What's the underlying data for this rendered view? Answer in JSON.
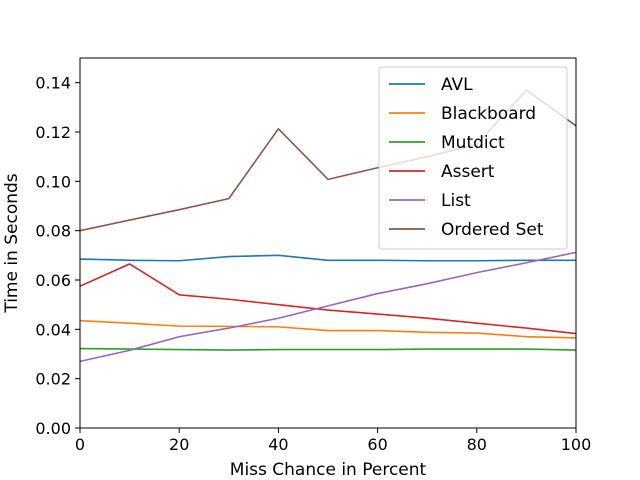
{
  "chart_data": {
    "type": "line",
    "title": "",
    "xlabel": "Miss Chance in Percent",
    "ylabel": "Time in Seconds",
    "xlim": [
      0,
      100
    ],
    "ylim": [
      0,
      0.15
    ],
    "xticks": [
      0,
      20,
      40,
      60,
      80,
      100
    ],
    "xtick_labels": [
      "0",
      "20",
      "40",
      "60",
      "80",
      "100"
    ],
    "yticks": [
      0,
      0.02,
      0.04,
      0.06,
      0.08,
      0.1,
      0.12,
      0.14
    ],
    "ytick_labels": [
      "0.00",
      "0.02",
      "0.04",
      "0.06",
      "0.08",
      "0.10",
      "0.12",
      "0.14"
    ],
    "grid": false,
    "legend_position": "top-right",
    "x": [
      0,
      10,
      20,
      30,
      40,
      50,
      60,
      70,
      80,
      90,
      100
    ],
    "series": [
      {
        "name": "AVL",
        "color": "#1f77b4",
        "values": [
          0.0685,
          0.068,
          0.0678,
          0.0695,
          0.07,
          0.068,
          0.068,
          0.0678,
          0.0678,
          0.068,
          0.068
        ]
      },
      {
        "name": "Blackboard",
        "color": "#ff7f0e",
        "values": [
          0.0435,
          0.0425,
          0.0413,
          0.0412,
          0.041,
          0.0395,
          0.0395,
          0.0388,
          0.0385,
          0.037,
          0.0365
        ]
      },
      {
        "name": "Mutdict",
        "color": "#2ca02c",
        "values": [
          0.0322,
          0.032,
          0.0318,
          0.0316,
          0.0318,
          0.0318,
          0.0318,
          0.032,
          0.032,
          0.032,
          0.0316
        ]
      },
      {
        "name": "Assert",
        "color": "#d62728",
        "values": [
          0.0575,
          0.0665,
          0.054,
          0.0522,
          0.05,
          0.0478,
          0.0462,
          0.0445,
          0.0425,
          0.0405,
          0.0383
        ]
      },
      {
        "name": "List",
        "color": "#9467bd",
        "values": [
          0.027,
          0.0315,
          0.037,
          0.0405,
          0.0445,
          0.0495,
          0.0545,
          0.0585,
          0.063,
          0.067,
          0.0712
        ]
      },
      {
        "name": "Ordered Set",
        "color": "#8c564b",
        "values": [
          0.08,
          0.0843,
          0.0885,
          0.093,
          0.1213,
          0.1008,
          0.1055,
          0.11,
          0.115,
          0.137,
          0.1225
        ]
      }
    ]
  }
}
